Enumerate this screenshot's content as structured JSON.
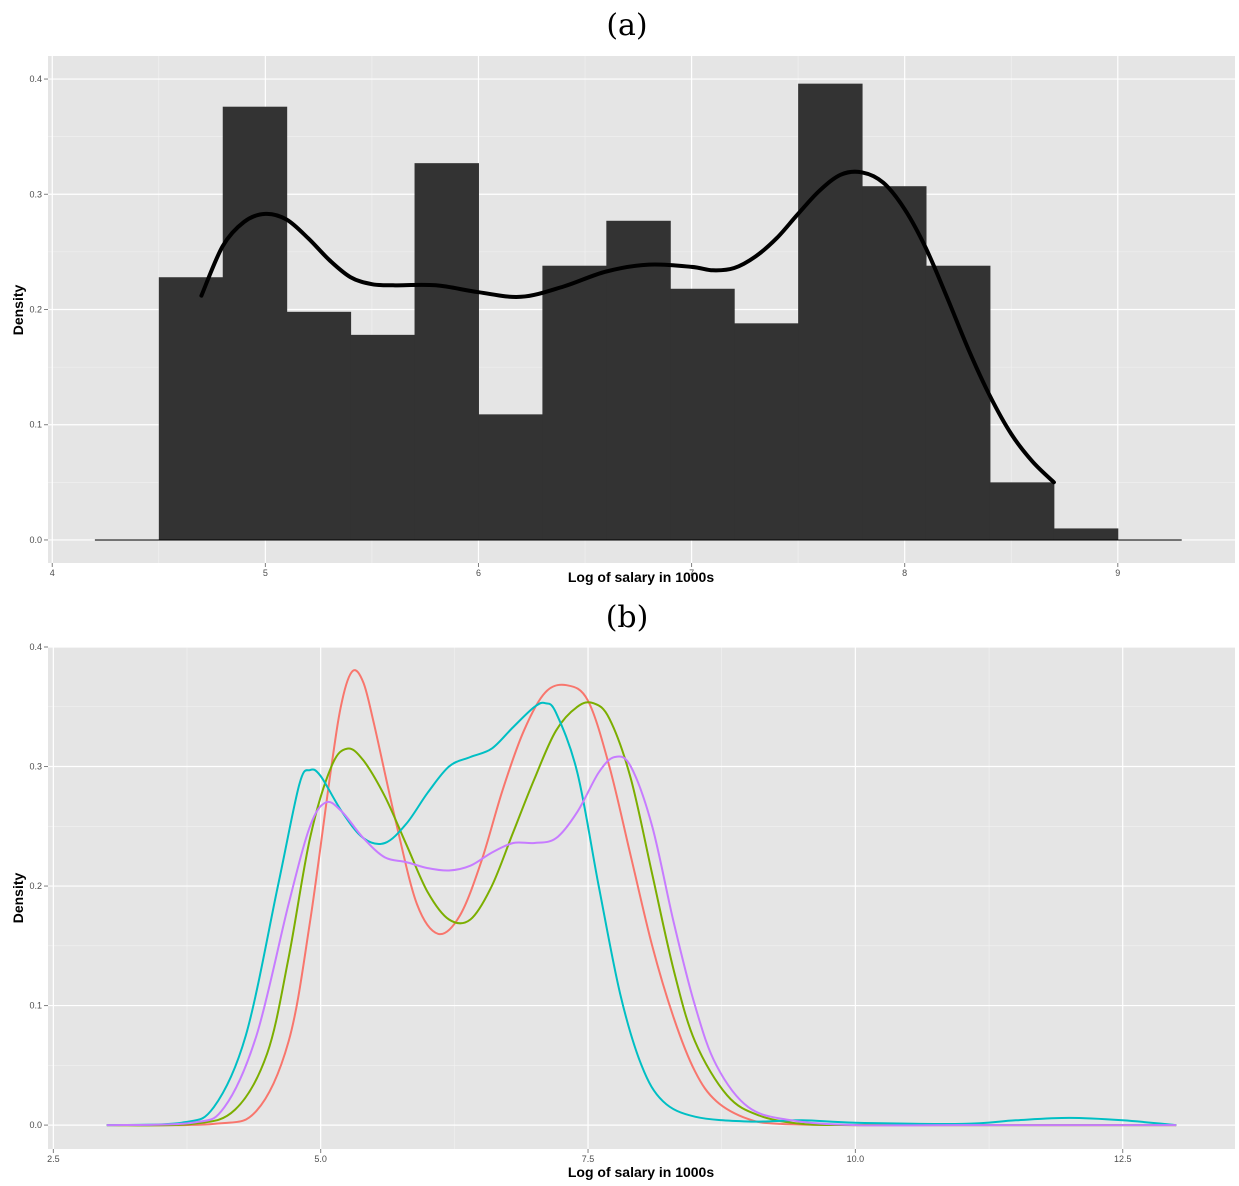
{
  "chart_data": [
    {
      "caption": "(a)",
      "type": "bar",
      "subtype": "histogram with density curve",
      "xlabel": "Log of salary in 1000s",
      "ylabel": "Density",
      "xlim": [
        3.98,
        9.55
      ],
      "ylim": [
        -0.02,
        0.42
      ],
      "x_ticks": [
        4,
        5,
        6,
        7,
        8,
        9
      ],
      "y_ticks": [
        0.0,
        0.1,
        0.2,
        0.3,
        0.4
      ],
      "y_tick_labels": [
        "0.0",
        "0.1",
        "0.2",
        "0.3",
        "0.4"
      ],
      "grid": true,
      "bar_color": "#333333",
      "bins": [
        {
          "x0": 4.2,
          "x1": 4.5,
          "value": 0.0
        },
        {
          "x0": 4.5,
          "x1": 4.8,
          "value": 0.228
        },
        {
          "x0": 4.8,
          "x1": 5.1,
          "value": 0.376
        },
        {
          "x0": 5.1,
          "x1": 5.4,
          "value": 0.198
        },
        {
          "x0": 5.4,
          "x1": 5.7,
          "value": 0.178
        },
        {
          "x0": 5.7,
          "x1": 6.0,
          "value": 0.327
        },
        {
          "x0": 6.0,
          "x1": 6.3,
          "value": 0.109
        },
        {
          "x0": 6.3,
          "x1": 6.6,
          "value": 0.238
        },
        {
          "x0": 6.6,
          "x1": 6.9,
          "value": 0.277
        },
        {
          "x0": 6.9,
          "x1": 7.2,
          "value": 0.218
        },
        {
          "x0": 7.2,
          "x1": 7.5,
          "value": 0.188
        },
        {
          "x0": 7.5,
          "x1": 7.8,
          "value": 0.396
        },
        {
          "x0": 7.8,
          "x1": 8.1,
          "value": 0.307
        },
        {
          "x0": 8.1,
          "x1": 8.4,
          "value": 0.238
        },
        {
          "x0": 8.4,
          "x1": 8.7,
          "value": 0.05
        },
        {
          "x0": 8.7,
          "x1": 9.0,
          "value": 0.01
        },
        {
          "x0": 9.0,
          "x1": 9.3,
          "value": 0.0
        }
      ],
      "density": {
        "color": "#000000",
        "x": [
          4.7,
          4.8,
          4.9,
          5.0,
          5.1,
          5.2,
          5.3,
          5.4,
          5.5,
          5.6,
          5.8,
          6.0,
          6.2,
          6.4,
          6.6,
          6.8,
          7.0,
          7.1,
          7.2,
          7.3,
          7.4,
          7.5,
          7.6,
          7.7,
          7.8,
          7.9,
          8.0,
          8.1,
          8.2,
          8.3,
          8.4,
          8.5,
          8.6,
          8.7
        ],
        "y": [
          0.212,
          0.255,
          0.276,
          0.283,
          0.278,
          0.262,
          0.243,
          0.228,
          0.222,
          0.221,
          0.221,
          0.215,
          0.211,
          0.22,
          0.233,
          0.239,
          0.237,
          0.234,
          0.236,
          0.246,
          0.262,
          0.283,
          0.303,
          0.317,
          0.319,
          0.31,
          0.287,
          0.253,
          0.21,
          0.165,
          0.125,
          0.092,
          0.068,
          0.05
        ]
      }
    },
    {
      "caption": "(b)",
      "type": "line",
      "subtype": "density curves",
      "xlabel": "Log of salary in 1000s",
      "ylabel": "Density",
      "xlim": [
        2.45,
        13.55
      ],
      "ylim": [
        -0.02,
        0.4
      ],
      "x_ticks": [
        2.5,
        5.0,
        7.5,
        10.0,
        12.5
      ],
      "x_tick_labels": [
        "2.5",
        "5.0",
        "7.5",
        "10.0",
        "12.5"
      ],
      "y_ticks": [
        0.0,
        0.1,
        0.2,
        0.3,
        0.4
      ],
      "y_tick_labels": [
        "0.0",
        "0.1",
        "0.2",
        "0.3",
        "0.4"
      ],
      "grid": true,
      "series": [
        {
          "color": "#F8766D",
          "x": [
            3.0,
            4.0,
            4.4,
            4.7,
            4.9,
            5.1,
            5.2,
            5.3,
            5.4,
            5.5,
            5.7,
            5.9,
            6.1,
            6.3,
            6.5,
            6.7,
            6.9,
            7.1,
            7.3,
            7.5,
            7.7,
            7.9,
            8.1,
            8.3,
            8.5,
            8.7,
            9.0,
            9.3,
            10.0,
            11.0,
            13.0
          ],
          "y": [
            0.0,
            0.001,
            0.012,
            0.07,
            0.17,
            0.3,
            0.355,
            0.38,
            0.37,
            0.335,
            0.255,
            0.185,
            0.16,
            0.175,
            0.22,
            0.28,
            0.33,
            0.362,
            0.368,
            0.355,
            0.3,
            0.225,
            0.15,
            0.09,
            0.045,
            0.02,
            0.005,
            0.001,
            0.0,
            0.0,
            0.0
          ]
        },
        {
          "color": "#7CAE00",
          "x": [
            3.0,
            3.8,
            4.2,
            4.5,
            4.7,
            4.9,
            5.1,
            5.25,
            5.4,
            5.6,
            5.8,
            6.0,
            6.2,
            6.4,
            6.6,
            6.8,
            7.0,
            7.2,
            7.4,
            7.55,
            7.7,
            7.9,
            8.1,
            8.3,
            8.5,
            8.8,
            9.1,
            9.5,
            10.0,
            11.0,
            13.0
          ],
          "y": [
            0.0,
            0.001,
            0.013,
            0.06,
            0.14,
            0.24,
            0.3,
            0.315,
            0.305,
            0.275,
            0.235,
            0.195,
            0.172,
            0.172,
            0.2,
            0.245,
            0.29,
            0.33,
            0.35,
            0.353,
            0.34,
            0.29,
            0.21,
            0.13,
            0.07,
            0.025,
            0.008,
            0.001,
            0.0,
            0.0,
            0.0
          ]
        },
        {
          "color": "#00BFC4",
          "x": [
            3.0,
            3.7,
            4.0,
            4.3,
            4.6,
            4.8,
            4.9,
            5.0,
            5.2,
            5.4,
            5.6,
            5.8,
            6.0,
            6.2,
            6.4,
            6.6,
            6.8,
            7.0,
            7.1,
            7.2,
            7.4,
            7.6,
            7.8,
            8.0,
            8.2,
            8.5,
            9.0,
            9.5,
            10.0,
            11.0,
            11.5,
            12.0,
            12.5,
            13.0
          ],
          "y": [
            0.0,
            0.002,
            0.015,
            0.075,
            0.2,
            0.285,
            0.297,
            0.292,
            0.262,
            0.24,
            0.236,
            0.252,
            0.278,
            0.3,
            0.308,
            0.315,
            0.333,
            0.35,
            0.353,
            0.345,
            0.295,
            0.2,
            0.11,
            0.05,
            0.02,
            0.007,
            0.003,
            0.004,
            0.002,
            0.001,
            0.004,
            0.006,
            0.004,
            0.0
          ]
        },
        {
          "color": "#C77CFF",
          "x": [
            3.0,
            3.8,
            4.1,
            4.4,
            4.7,
            4.9,
            5.05,
            5.2,
            5.4,
            5.6,
            5.8,
            6.0,
            6.2,
            6.4,
            6.6,
            6.8,
            7.0,
            7.2,
            7.4,
            7.6,
            7.75,
            7.9,
            8.1,
            8.3,
            8.5,
            8.7,
            9.0,
            9.4,
            10.0,
            11.0,
            13.0
          ],
          "y": [
            0.0,
            0.002,
            0.015,
            0.075,
            0.185,
            0.25,
            0.27,
            0.262,
            0.24,
            0.224,
            0.22,
            0.215,
            0.213,
            0.217,
            0.228,
            0.236,
            0.236,
            0.24,
            0.262,
            0.295,
            0.308,
            0.3,
            0.25,
            0.17,
            0.1,
            0.05,
            0.015,
            0.004,
            0.0,
            0.0,
            0.0
          ]
        }
      ]
    }
  ]
}
